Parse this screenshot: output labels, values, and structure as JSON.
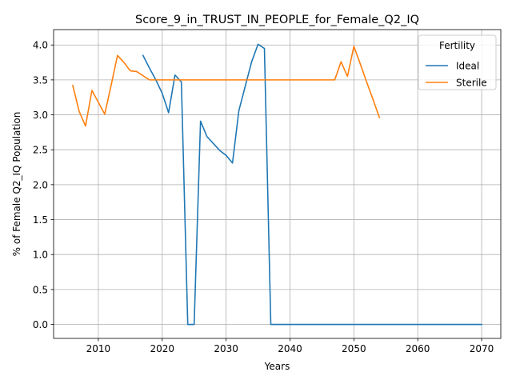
{
  "chart_data": {
    "type": "line",
    "title": "Score_9_in_TRUST_IN_PEOPLE_for_Female_Q2_IQ",
    "xlabel": "Years",
    "ylabel": "% of Female Q2_IQ Population",
    "xlim": [
      2003,
      2073
    ],
    "ylim": [
      -0.2,
      4.22
    ],
    "xticks": [
      2010,
      2020,
      2030,
      2040,
      2050,
      2060,
      2070
    ],
    "yticks": [
      "0.0",
      "0.5",
      "1.0",
      "1.5",
      "2.0",
      "2.5",
      "3.0",
      "3.5",
      "4.0"
    ],
    "grid": true,
    "legend": {
      "title": "Fertility",
      "placement": "top-right"
    },
    "series": [
      {
        "name": "Ideal",
        "color": "#1f77b4",
        "x": [
          2017,
          2018,
          2019,
          2020,
          2021,
          2022,
          2023,
          2024,
          2025,
          2026,
          2027,
          2028,
          2029,
          2030,
          2031,
          2032,
          2033,
          2034,
          2035,
          2036,
          2037,
          2038,
          2039,
          2040,
          2041,
          2042,
          2043,
          2044,
          2045,
          2046,
          2047,
          2048,
          2049,
          2050,
          2051,
          2052,
          2053,
          2054,
          2055,
          2056,
          2057,
          2058,
          2059,
          2060,
          2061,
          2062,
          2063,
          2064,
          2065,
          2066,
          2067,
          2068,
          2069,
          2070
        ],
        "y": [
          3.85,
          3.67,
          3.5,
          3.31,
          3.03,
          3.57,
          3.47,
          0.0,
          0.0,
          2.91,
          2.69,
          2.59,
          2.49,
          2.42,
          2.31,
          3.06,
          3.41,
          3.76,
          4.01,
          3.95,
          0.0,
          0.0,
          0.0,
          0.0,
          0.0,
          0.0,
          0.0,
          0.0,
          0.0,
          0.0,
          0.0,
          0.0,
          0.0,
          0.0,
          0.0,
          0.0,
          0.0,
          0.0,
          0.0,
          0.0,
          0.0,
          0.0,
          0.0,
          0.0,
          0.0,
          0.0,
          0.0,
          0.0,
          0.0,
          0.0,
          0.0,
          0.0,
          0.0,
          0.0
        ]
      },
      {
        "name": "Sterile",
        "color": "#ff7f0e",
        "x": [
          2006,
          2007,
          2008,
          2009,
          2010,
          2011,
          2012,
          2013,
          2014,
          2015,
          2016,
          2017,
          2018,
          2019,
          2020,
          2021,
          2022,
          2023,
          2024,
          2025,
          2026,
          2027,
          2028,
          2029,
          2030,
          2031,
          2032,
          2033,
          2034,
          2035,
          2036,
          2037,
          2038,
          2039,
          2040,
          2041,
          2042,
          2043,
          2044,
          2045,
          2046,
          2047,
          2048,
          2049,
          2050,
          2051,
          2052,
          2053,
          2054
        ],
        "y": [
          3.42,
          3.05,
          2.84,
          3.35,
          3.18,
          3.01,
          3.42,
          3.85,
          3.75,
          3.63,
          3.62,
          3.56,
          3.5,
          3.5,
          3.5,
          3.5,
          3.5,
          3.5,
          3.5,
          3.5,
          3.5,
          3.5,
          3.5,
          3.5,
          3.5,
          3.5,
          3.5,
          3.5,
          3.5,
          3.5,
          3.5,
          3.5,
          3.5,
          3.5,
          3.5,
          3.5,
          3.5,
          3.5,
          3.5,
          3.5,
          3.5,
          3.5,
          3.76,
          3.55,
          3.98,
          3.73,
          3.47,
          3.22,
          2.96
        ]
      }
    ]
  }
}
